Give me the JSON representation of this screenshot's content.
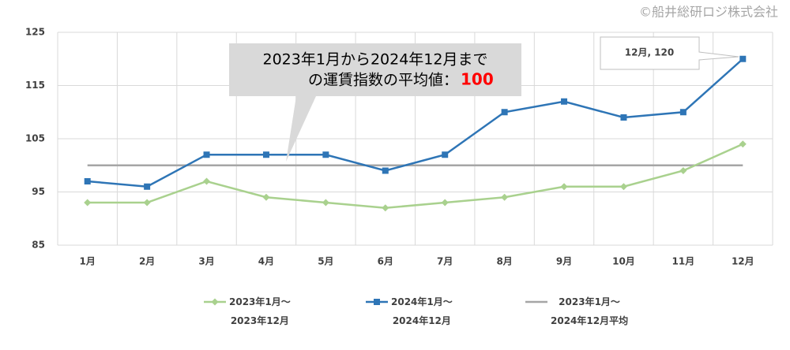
{
  "chart_data": {
    "type": "line",
    "copyright": "©船井総研ロジ株式会社",
    "categories": [
      "1月",
      "2月",
      "3月",
      "4月",
      "5月",
      "6月",
      "7月",
      "8月",
      "9月",
      "10月",
      "11月",
      "12月"
    ],
    "series": [
      {
        "name": "2023年1月～\n2023年12月",
        "color": "#a9d18e",
        "marker": "diamond",
        "values": [
          93,
          93,
          97,
          94,
          93,
          92,
          93,
          94,
          96,
          96,
          99,
          104
        ]
      },
      {
        "name": "2024年1月～\n2024年12月",
        "color": "#2e75b6",
        "marker": "square",
        "values": [
          97,
          96,
          102,
          102,
          102,
          99,
          102,
          110,
          112,
          109,
          110,
          120
        ]
      },
      {
        "name": "2023年1月～\n2024年12月平均",
        "color": "#a6a6a6",
        "marker": "none",
        "values": [
          100,
          100,
          100,
          100,
          100,
          100,
          100,
          100,
          100,
          100,
          100,
          100
        ]
      }
    ],
    "ylim": [
      85,
      125
    ],
    "yticks": [
      85,
      95,
      105,
      115,
      125
    ],
    "grid": true,
    "annotations": [
      {
        "text": "2023年1月から2024年12月まで",
        "text2": "の運賃指数の平均値：",
        "value": 100,
        "value_color": "#ff0000"
      },
      {
        "text": "12月, 120"
      }
    ]
  }
}
